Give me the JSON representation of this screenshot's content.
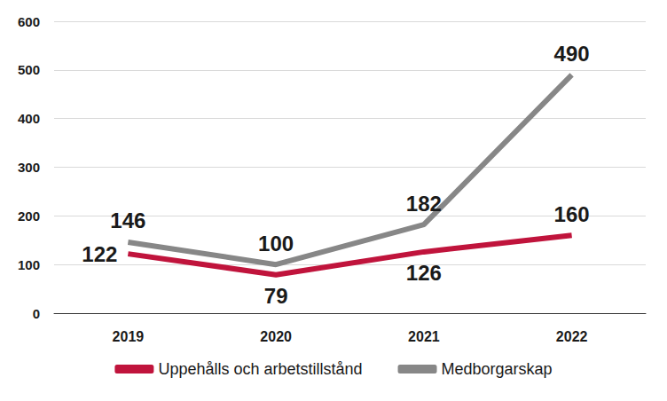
{
  "chart_data": {
    "type": "line",
    "categories": [
      "2019",
      "2020",
      "2021",
      "2022"
    ],
    "series": [
      {
        "name": "Uppehålls och arbetstillstånd",
        "color": "#c0143c",
        "values": [
          122,
          79,
          126,
          160
        ]
      },
      {
        "name": "Medborgarskap",
        "color": "#878787",
        "values": [
          146,
          100,
          182,
          490
        ]
      }
    ],
    "ylim": [
      0,
      600
    ],
    "yticks": [
      0,
      100,
      200,
      300,
      400,
      500,
      600
    ],
    "grid": true,
    "legend": "bottom",
    "data_labels": true
  }
}
